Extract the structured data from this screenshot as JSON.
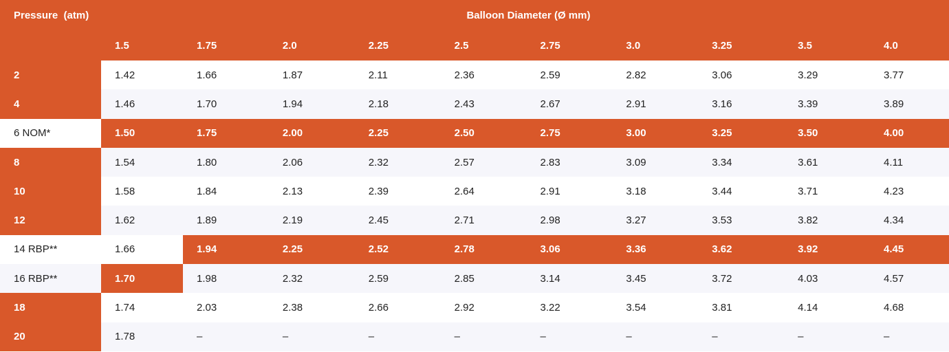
{
  "table": {
    "row_header_label": "Pressure  (atm)",
    "title": "Balloon Diameter (Ø mm)",
    "column_headers": [
      "1.5",
      "1.75",
      "2.0",
      "2.25",
      "2.5",
      "2.75",
      "3.0",
      "3.25",
      "3.5",
      "4.0"
    ],
    "rows": [
      {
        "label": "2",
        "values": [
          "1.42",
          "1.66",
          "1.87",
          "2.11",
          "2.36",
          "2.59",
          "2.82",
          "3.06",
          "3.29",
          "3.77"
        ]
      },
      {
        "label": "4",
        "values": [
          "1.46",
          "1.70",
          "1.94",
          "2.18",
          "2.43",
          "2.67",
          "2.91",
          "3.16",
          "3.39",
          "3.89"
        ]
      },
      {
        "label": "6 NOM*",
        "values": [
          "1.50",
          "1.75",
          "2.00",
          "2.25",
          "2.50",
          "2.75",
          "3.00",
          "3.25",
          "3.50",
          "4.00"
        ]
      },
      {
        "label": "8",
        "values": [
          "1.54",
          "1.80",
          "2.06",
          "2.32",
          "2.57",
          "2.83",
          "3.09",
          "3.34",
          "3.61",
          "4.11"
        ]
      },
      {
        "label": "10",
        "values": [
          "1.58",
          "1.84",
          "2.13",
          "2.39",
          "2.64",
          "2.91",
          "3.18",
          "3.44",
          "3.71",
          "4.23"
        ]
      },
      {
        "label": "12",
        "values": [
          "1.62",
          "1.89",
          "2.19",
          "2.45",
          "2.71",
          "2.98",
          "3.27",
          "3.53",
          "3.82",
          "4.34"
        ]
      },
      {
        "label": "14 RBP**",
        "values": [
          "1.66",
          "1.94",
          "2.25",
          "2.52",
          "2.78",
          "3.06",
          "3.36",
          "3.62",
          "3.92",
          "4.45"
        ]
      },
      {
        "label": "16 RBP**",
        "values": [
          "1.70",
          "1.98",
          "2.32",
          "2.59",
          "2.85",
          "3.14",
          "3.45",
          "3.72",
          "4.03",
          "4.57"
        ]
      },
      {
        "label": "18",
        "values": [
          "1.74",
          "2.03",
          "2.38",
          "2.66",
          "2.92",
          "3.22",
          "3.54",
          "3.81",
          "4.14",
          "4.68"
        ]
      },
      {
        "label": "20",
        "values": [
          "1.78",
          "–",
          "–",
          "–",
          "–",
          "–",
          "–",
          "–",
          "–",
          "–"
        ]
      }
    ]
  },
  "colors": {
    "accent": "#d9582a",
    "row_alt": "#f6f6fb",
    "text": "#222222"
  }
}
